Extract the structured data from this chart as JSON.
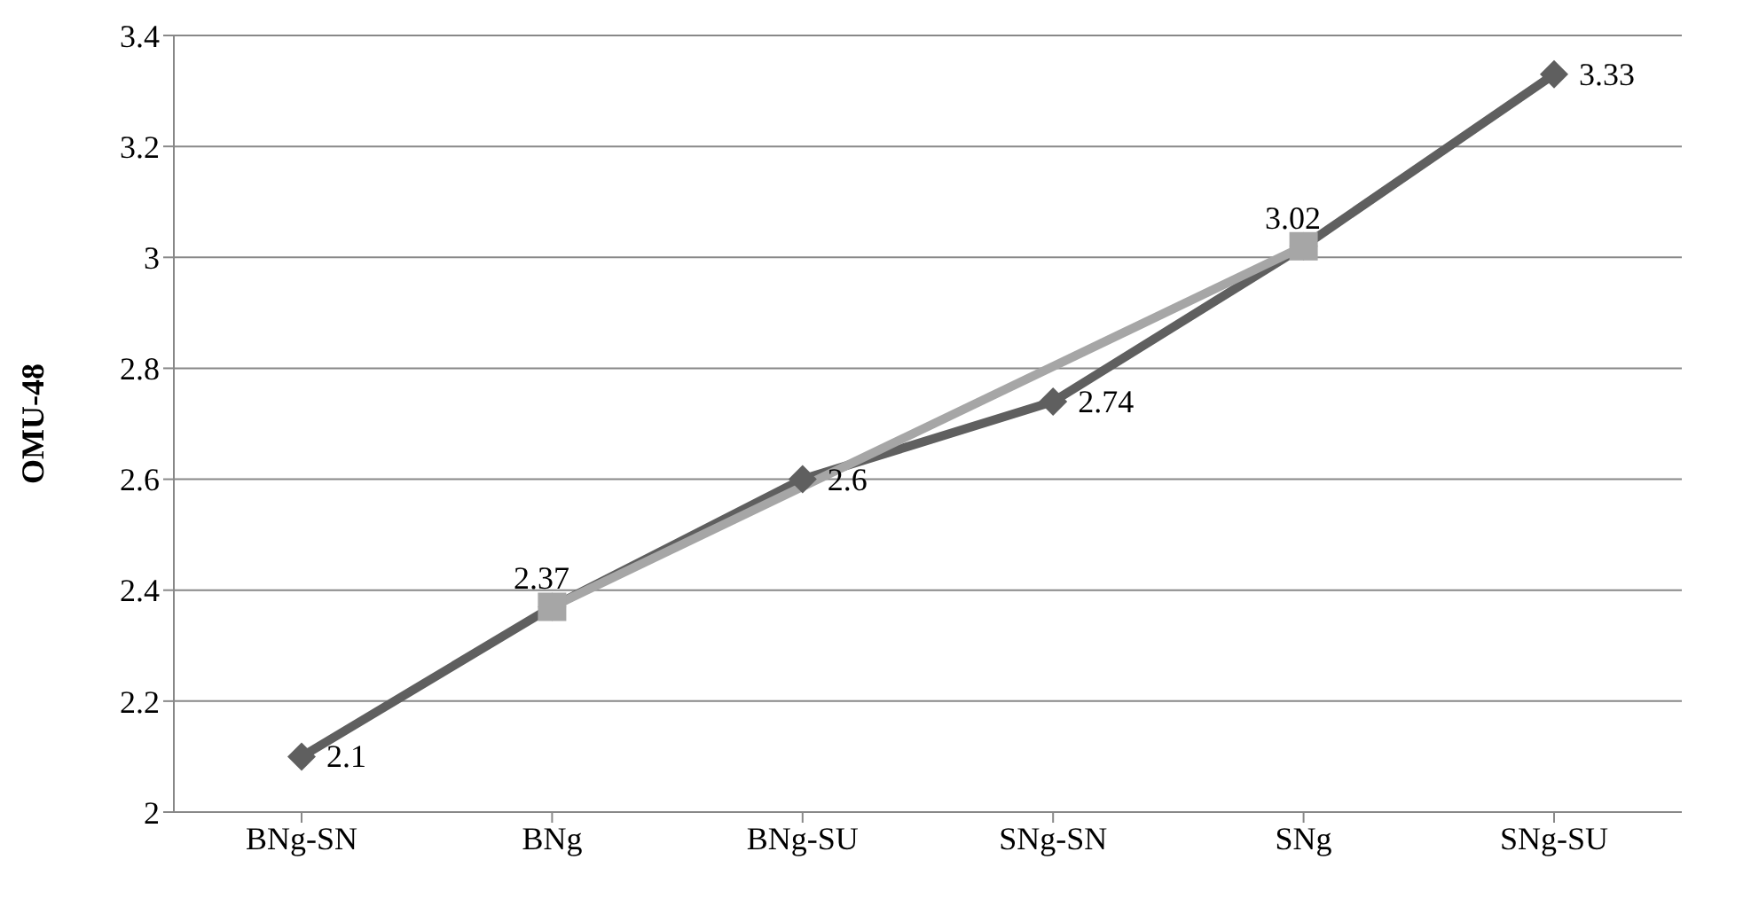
{
  "chart_data": {
    "type": "line",
    "ylabel": "OMU-48",
    "categories": [
      "BNg-SN",
      "BNg",
      "BNg-SU",
      "SNg-SN",
      "SNg",
      "SNg-SU"
    ],
    "series": [
      {
        "color": "#5f5f5f",
        "marker": "diamond",
        "values": [
          2.1,
          2.37,
          2.6,
          2.74,
          3.02,
          3.33
        ],
        "value_labels": [
          "2.1",
          null,
          "2.6",
          "2.74",
          null,
          "3.33"
        ]
      },
      {
        "color": "#a6a6a6",
        "marker": "square",
        "values": [
          null,
          2.37,
          null,
          null,
          3.02,
          null
        ],
        "value_labels": [
          null,
          "2.37",
          null,
          null,
          "3.02",
          null
        ]
      }
    ],
    "ylim": [
      2,
      3.4
    ],
    "yticks": [
      2,
      2.2,
      2.4,
      2.6,
      2.8,
      3,
      3.2,
      3.4
    ],
    "grid": "y",
    "legend": false
  }
}
